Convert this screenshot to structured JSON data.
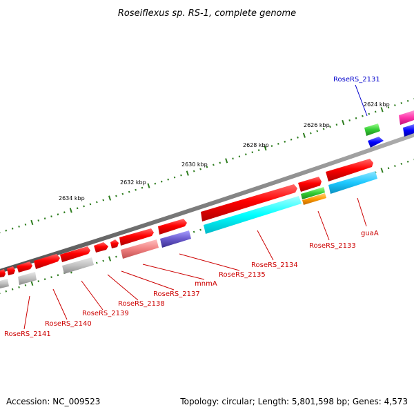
{
  "title": "Roseiflexus sp. RS-1, complete genome",
  "accession": "Accession: NC_009523",
  "topology": "Topology: circular; Length: 5,801,598 bp; Genes: 4,573",
  "colors": {
    "backbone": "#808080",
    "tick": "#2e7d1f",
    "label_red": "#cc0000",
    "label_blue": "#0000cc"
  },
  "ticks": [
    "2624 kbp",
    "2626 kbp",
    "2628 kbp",
    "2630 kbp",
    "2632 kbp",
    "2634 kbp"
  ],
  "labels": [
    {
      "id": "RoseRS_2131",
      "text": "RoseRS_2131",
      "color": "blue"
    },
    {
      "id": "guaA",
      "text": "guaA",
      "color": "red"
    },
    {
      "id": "RoseRS_2133",
      "text": "RoseRS_2133",
      "color": "red"
    },
    {
      "id": "RoseRS_2134",
      "text": "RoseRS_2134",
      "color": "red"
    },
    {
      "id": "RoseRS_2135",
      "text": "RoseRS_2135",
      "color": "red"
    },
    {
      "id": "mnmA",
      "text": "mnmA",
      "color": "red"
    },
    {
      "id": "RoseRS_2137",
      "text": "RoseRS_2137",
      "color": "red"
    },
    {
      "id": "RoseRS_2138",
      "text": "RoseRS_2138",
      "color": "red"
    },
    {
      "id": "RoseRS_2139",
      "text": "RoseRS_2139",
      "color": "red"
    },
    {
      "id": "RoseRS_2140",
      "text": "RoseRS_2140",
      "color": "red"
    },
    {
      "id": "RoseRS_2141",
      "text": "RoseRS_2141",
      "color": "red"
    }
  ]
}
